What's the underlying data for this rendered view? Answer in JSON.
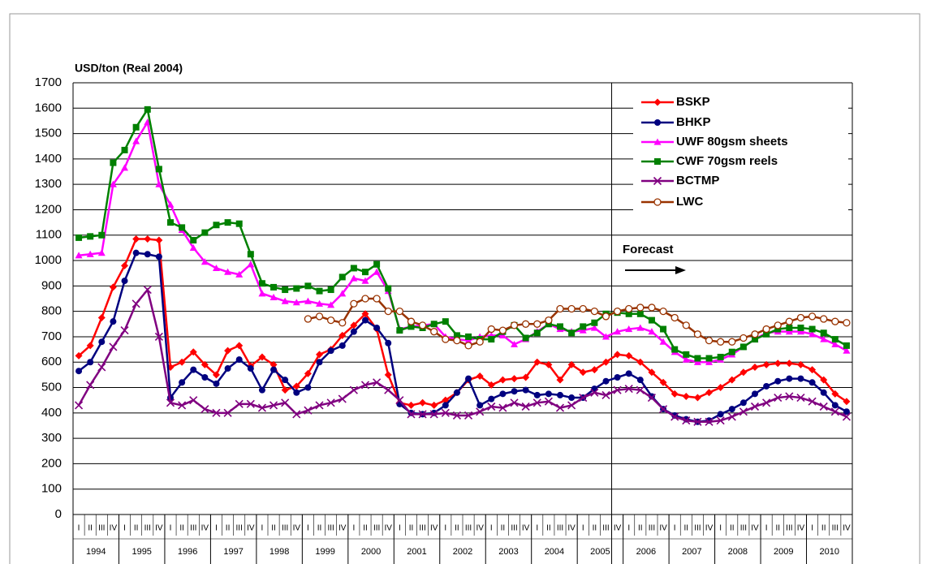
{
  "chart_data": {
    "type": "line",
    "y_axis_label": "USD/ton (Real 2004)",
    "annotation": "Forecast",
    "categories": [
      "I",
      "II",
      "III",
      "IV",
      "I",
      "II",
      "III",
      "IV",
      "I",
      "II",
      "III",
      "IV",
      "I",
      "II",
      "III",
      "IV",
      "I",
      "II",
      "III",
      "IV",
      "I",
      "II",
      "III",
      "IV",
      "I",
      "II",
      "III",
      "IV",
      "I",
      "II",
      "III",
      "IV",
      "I",
      "II",
      "III",
      "IV",
      "I",
      "II",
      "III",
      "IV",
      "I",
      "II",
      "III",
      "IV",
      "I",
      "II",
      "III",
      "IV",
      "I",
      "II",
      "III",
      "IV",
      "I",
      "II",
      "III",
      "IV",
      "I",
      "II",
      "III",
      "IV",
      "I",
      "II",
      "III",
      "IV",
      "I",
      "II",
      "III",
      "IV"
    ],
    "years": [
      "1994",
      "1995",
      "1996",
      "1997",
      "1998",
      "1999",
      "2000",
      "2001",
      "2002",
      "2003",
      "2004",
      "2005",
      "2006",
      "2007",
      "2008",
      "2009",
      "2010"
    ],
    "ylim": [
      0,
      1700
    ],
    "yticks": [
      0,
      100,
      200,
      300,
      400,
      500,
      600,
      700,
      800,
      900,
      1000,
      1100,
      1200,
      1300,
      1400,
      1500,
      1600,
      1700
    ],
    "grid": true,
    "legend": "upper right",
    "series": [
      {
        "name": "BSKP",
        "color": "#ff0000",
        "marker": "diamond",
        "values": [
          625,
          665,
          775,
          895,
          980,
          1085,
          1085,
          1080,
          580,
          600,
          640,
          590,
          550,
          645,
          665,
          585,
          620,
          590,
          490,
          505,
          555,
          630,
          650,
          705,
          745,
          790,
          730,
          550,
          440,
          430,
          440,
          430,
          450,
          480,
          530,
          545,
          510,
          530,
          535,
          540,
          600,
          590,
          530,
          590,
          560,
          570,
          600,
          630,
          625,
          600,
          560,
          520,
          475,
          465,
          460,
          480,
          500,
          530,
          560,
          580,
          590,
          595,
          595,
          590,
          570,
          530,
          475,
          445
        ]
      },
      {
        "name": "BHKP",
        "color": "#00007f",
        "marker": "circle",
        "values": [
          565,
          600,
          680,
          760,
          920,
          1030,
          1025,
          1015,
          460,
          520,
          570,
          540,
          515,
          575,
          610,
          575,
          490,
          570,
          530,
          480,
          500,
          600,
          645,
          665,
          720,
          765,
          735,
          675,
          435,
          400,
          395,
          400,
          430,
          480,
          535,
          430,
          455,
          475,
          485,
          490,
          470,
          475,
          470,
          460,
          460,
          495,
          525,
          540,
          555,
          530,
          465,
          415,
          390,
          375,
          365,
          370,
          395,
          415,
          440,
          475,
          505,
          525,
          535,
          535,
          520,
          480,
          430,
          405
        ]
      },
      {
        "name": "UWF 80gsm sheets",
        "color": "#ff00ff",
        "marker": "triangle",
        "values": [
          1020,
          1025,
          1030,
          1300,
          1365,
          1470,
          1545,
          1300,
          1220,
          1120,
          1050,
          995,
          970,
          955,
          945,
          985,
          870,
          855,
          840,
          835,
          840,
          830,
          825,
          870,
          930,
          920,
          955,
          880,
          730,
          740,
          745,
          750,
          700,
          690,
          685,
          700,
          705,
          705,
          670,
          690,
          720,
          750,
          730,
          720,
          725,
          735,
          700,
          720,
          730,
          735,
          720,
          680,
          640,
          610,
          600,
          600,
          610,
          630,
          660,
          690,
          715,
          720,
          720,
          720,
          710,
          690,
          670,
          645
        ]
      },
      {
        "name": "CWF 70gsm reels",
        "color": "#008000",
        "marker": "square",
        "values": [
          1090,
          1095,
          1100,
          1385,
          1435,
          1525,
          1595,
          1360,
          1150,
          1130,
          1080,
          1110,
          1140,
          1150,
          1145,
          1025,
          910,
          895,
          885,
          890,
          900,
          880,
          885,
          935,
          970,
          955,
          985,
          890,
          725,
          740,
          735,
          750,
          760,
          705,
          700,
          690,
          690,
          720,
          745,
          695,
          715,
          750,
          740,
          715,
          740,
          755,
          790,
          795,
          790,
          790,
          765,
          730,
          650,
          630,
          615,
          615,
          620,
          640,
          660,
          690,
          710,
          730,
          735,
          735,
          730,
          715,
          690,
          665
        ]
      },
      {
        "name": "BCTMP",
        "color": "#800080",
        "marker": "x",
        "values": [
          430,
          510,
          580,
          660,
          725,
          830,
          885,
          700,
          440,
          430,
          450,
          415,
          400,
          400,
          435,
          435,
          420,
          430,
          440,
          395,
          410,
          430,
          440,
          455,
          490,
          510,
          520,
          490,
          450,
          395,
          395,
          395,
          400,
          390,
          390,
          405,
          425,
          420,
          440,
          425,
          440,
          445,
          420,
          430,
          460,
          480,
          470,
          490,
          495,
          490,
          460,
          415,
          385,
          370,
          365,
          365,
          370,
          385,
          405,
          425,
          440,
          460,
          465,
          460,
          445,
          425,
          405,
          385
        ]
      },
      {
        "name": "LWC",
        "color": "#993300",
        "marker": "open-circle",
        "values": [
          null,
          null,
          null,
          null,
          null,
          null,
          null,
          null,
          null,
          null,
          null,
          null,
          null,
          null,
          null,
          null,
          null,
          null,
          null,
          null,
          770,
          780,
          765,
          755,
          830,
          850,
          850,
          800,
          800,
          760,
          745,
          720,
          690,
          685,
          665,
          680,
          730,
          725,
          745,
          750,
          750,
          765,
          810,
          810,
          810,
          800,
          780,
          800,
          810,
          815,
          815,
          800,
          775,
          745,
          710,
          685,
          680,
          680,
          695,
          710,
          730,
          745,
          760,
          775,
          780,
          770,
          760,
          755
        ]
      }
    ]
  }
}
